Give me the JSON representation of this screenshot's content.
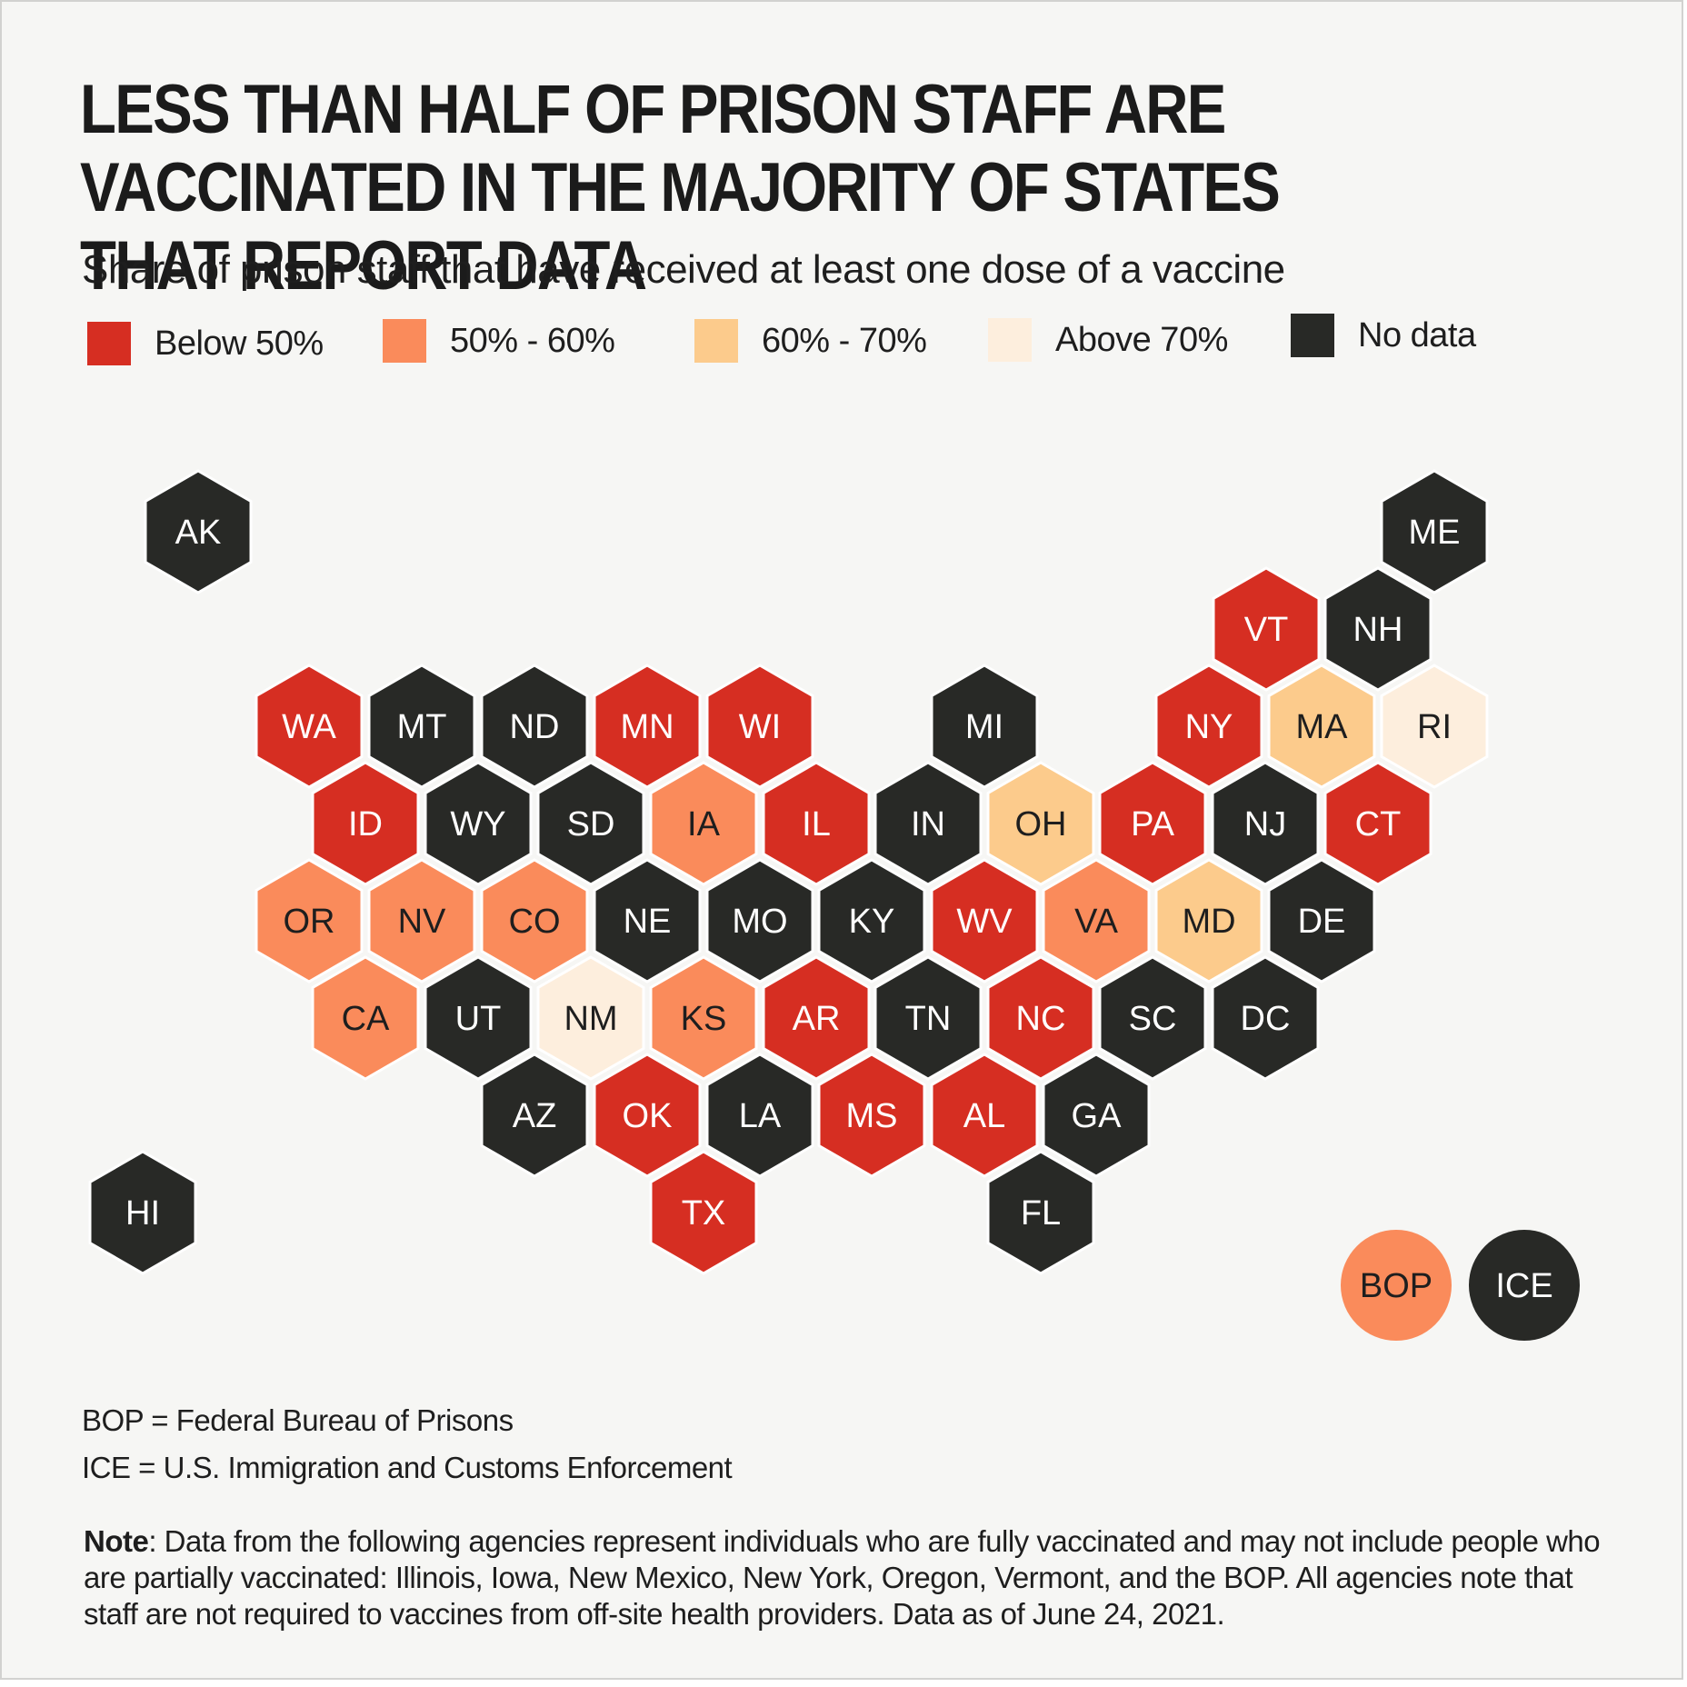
{
  "title": "LESS THAN HALF OF PRISON STAFF ARE VACCINATED IN THE MAJORITY OF STATES THAT REPORT DATA",
  "subtitle": "Share of prison staff that have received at least one dose of a vaccine",
  "legend": [
    {
      "key": "below50",
      "label": "Below 50%",
      "color": "#d62e22"
    },
    {
      "key": "50to60",
      "label": "50% - 60%",
      "color": "#fa8b5b"
    },
    {
      "key": "60to70",
      "label": "60% - 70%",
      "color": "#fccb8c"
    },
    {
      "key": "above70",
      "label": "Above 70%",
      "color": "#fdeedd"
    },
    {
      "key": "nodata",
      "label": "No data",
      "color": "#282926"
    }
  ],
  "states": [
    {
      "code": "AK",
      "category": "nodata"
    },
    {
      "code": "ME",
      "category": "nodata"
    },
    {
      "code": "VT",
      "category": "below50"
    },
    {
      "code": "NH",
      "category": "nodata"
    },
    {
      "code": "WA",
      "category": "below50"
    },
    {
      "code": "MT",
      "category": "nodata"
    },
    {
      "code": "ND",
      "category": "nodata"
    },
    {
      "code": "MN",
      "category": "below50"
    },
    {
      "code": "WI",
      "category": "below50"
    },
    {
      "code": "MI",
      "category": "nodata"
    },
    {
      "code": "NY",
      "category": "below50"
    },
    {
      "code": "MA",
      "category": "60to70"
    },
    {
      "code": "RI",
      "category": "above70"
    },
    {
      "code": "ID",
      "category": "below50"
    },
    {
      "code": "WY",
      "category": "nodata"
    },
    {
      "code": "SD",
      "category": "nodata"
    },
    {
      "code": "IA",
      "category": "50to60"
    },
    {
      "code": "IL",
      "category": "below50"
    },
    {
      "code": "IN",
      "category": "nodata"
    },
    {
      "code": "OH",
      "category": "60to70"
    },
    {
      "code": "PA",
      "category": "below50"
    },
    {
      "code": "NJ",
      "category": "nodata"
    },
    {
      "code": "CT",
      "category": "below50"
    },
    {
      "code": "OR",
      "category": "50to60"
    },
    {
      "code": "NV",
      "category": "50to60"
    },
    {
      "code": "CO",
      "category": "50to60"
    },
    {
      "code": "NE",
      "category": "nodata"
    },
    {
      "code": "MO",
      "category": "nodata"
    },
    {
      "code": "KY",
      "category": "nodata"
    },
    {
      "code": "WV",
      "category": "below50"
    },
    {
      "code": "VA",
      "category": "50to60"
    },
    {
      "code": "MD",
      "category": "60to70"
    },
    {
      "code": "DE",
      "category": "nodata"
    },
    {
      "code": "CA",
      "category": "50to60"
    },
    {
      "code": "UT",
      "category": "nodata"
    },
    {
      "code": "NM",
      "category": "above70"
    },
    {
      "code": "KS",
      "category": "50to60"
    },
    {
      "code": "AR",
      "category": "below50"
    },
    {
      "code": "TN",
      "category": "nodata"
    },
    {
      "code": "NC",
      "category": "below50"
    },
    {
      "code": "SC",
      "category": "nodata"
    },
    {
      "code": "DC",
      "category": "nodata"
    },
    {
      "code": "AZ",
      "category": "nodata"
    },
    {
      "code": "OK",
      "category": "below50"
    },
    {
      "code": "LA",
      "category": "nodata"
    },
    {
      "code": "MS",
      "category": "below50"
    },
    {
      "code": "AL",
      "category": "below50"
    },
    {
      "code": "GA",
      "category": "nodata"
    },
    {
      "code": "HI",
      "category": "nodata"
    },
    {
      "code": "TX",
      "category": "below50"
    },
    {
      "code": "FL",
      "category": "nodata"
    }
  ],
  "agencies": [
    {
      "code": "BOP",
      "category": "50to60"
    },
    {
      "code": "ICE",
      "category": "nodata"
    }
  ],
  "footnotes": {
    "bop": "BOP = Federal Bureau of Prisons",
    "ice": "ICE = U.S. Immigration and Customs Enforcement"
  },
  "note": {
    "label": "Note",
    "text": ": Data from the following agencies represent individuals who are fully vaccinated and may not include people who are partially vaccinated: Illinois, Iowa, New Mexico, New York, Oregon, Vermont, and the BOP. All agencies note that staff are not required to vaccines from off-site health providers. Data as of June 24, 2021."
  }
}
